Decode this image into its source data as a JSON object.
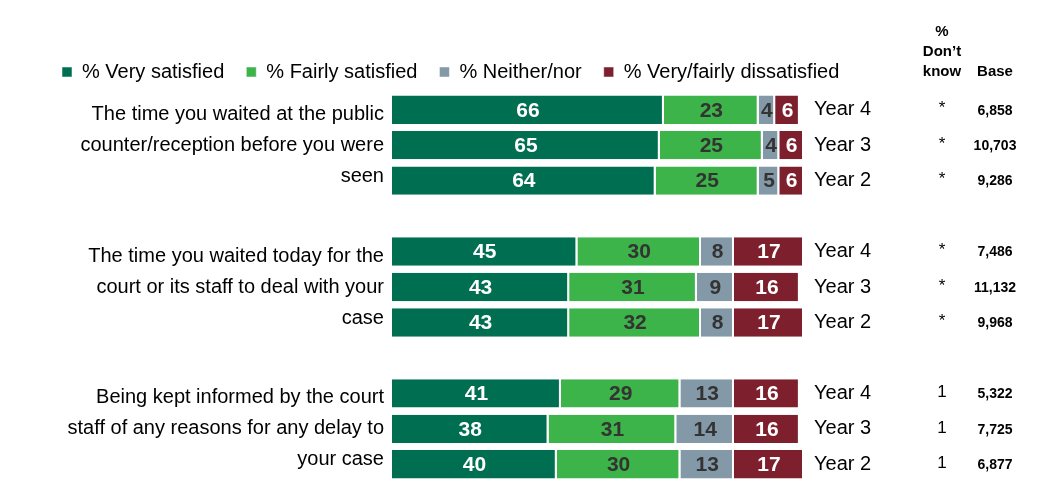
{
  "chart_data": {
    "type": "bar",
    "orientation": "horizontal",
    "stacked": true,
    "data_labels": true,
    "legend": "top left",
    "grid": false,
    "tick_labels": "y",
    "categories": [
      "Year 4",
      "Year 3",
      "Year 2",
      null,
      "Year 4",
      "Year 3",
      "Year 2",
      null,
      "Year 4",
      "Year 3",
      "Year 2"
    ],
    "xlim": [
      0,
      100
    ],
    "series": [
      {
        "name": "% Very satisfied",
        "color": "#006f51",
        "values": [
          66,
          65,
          64,
          null,
          45,
          43,
          43,
          null,
          41,
          38,
          40
        ]
      },
      {
        "name": "% Fairly satisfied",
        "color": "#3db449",
        "values": [
          23,
          25,
          25,
          null,
          30,
          31,
          32,
          null,
          29,
          31,
          30
        ]
      },
      {
        "name": "% Neither/nor",
        "color": "#8499a7",
        "values": [
          4,
          4,
          5,
          null,
          8,
          9,
          8,
          null,
          13,
          14,
          13
        ]
      },
      {
        "name": "% Very/fairly dissatisfied",
        "color": "#7d1f2d",
        "values": [
          6,
          6,
          6,
          null,
          17,
          16,
          17,
          null,
          16,
          16,
          17
        ]
      }
    ],
    "annotations": [
      "The time you waited at the public counter/reception before you were seen",
      "The time you waited today for the court or its staff to deal with your case",
      "Being kept informed by the court staff of any reasons for any delay to your case",
      "% Don’t know",
      "Base",
      "*",
      "6,858",
      "*",
      "10,703",
      "*",
      "9,286",
      "*",
      "7,486",
      "*",
      "11,132",
      "*",
      "9,968",
      "1",
      "5,322",
      "1",
      "7,725",
      "1",
      "6,877"
    ]
  }
}
